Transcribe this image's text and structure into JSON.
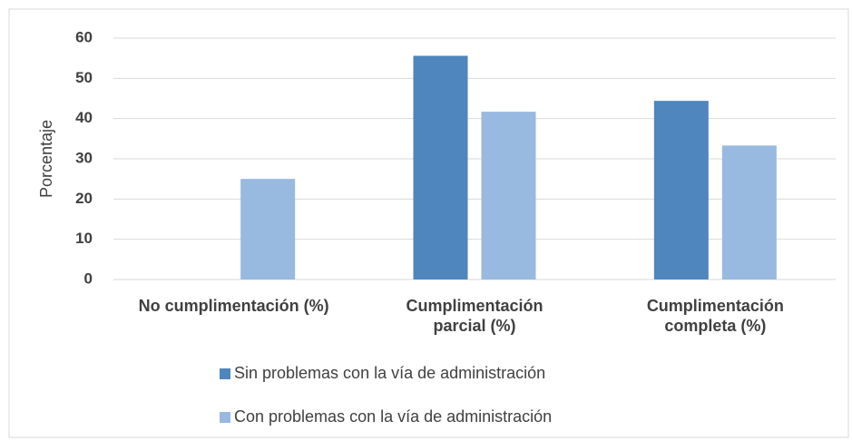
{
  "chart_data": {
    "type": "bar",
    "y_label": "Porcentaje",
    "categories": [
      "No cumplimentación (%)",
      "Cumplimentación parcial (%)",
      "Cumplimentación completa (%)"
    ],
    "series": [
      {
        "name": "Sin problemas con la vía de administración",
        "color": "#4e86bd",
        "values": [
          0,
          55.6,
          44.4
        ]
      },
      {
        "name": "Con problemas con la vía de administración",
        "color": "#98b9e0",
        "values": [
          25,
          41.7,
          33.3
        ]
      }
    ],
    "ylim": [
      0,
      60
    ],
    "yticks": [
      0,
      10,
      20,
      30,
      40,
      50,
      60
    ],
    "grid": true,
    "legend": "bottom"
  }
}
